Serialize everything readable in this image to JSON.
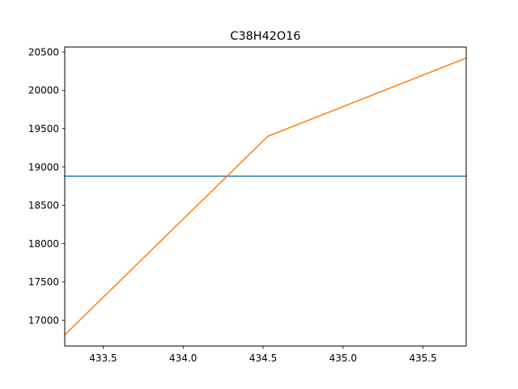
{
  "chart_data": {
    "type": "line",
    "title": "C38H42O16",
    "xlabel": "",
    "ylabel": "",
    "xlim": [
      433.26,
      435.77
    ],
    "ylim": [
      16664,
      20564
    ],
    "xticks": [
      433.5,
      434.0,
      434.5,
      435.0,
      435.5
    ],
    "xtick_labels": [
      "433.5",
      "434.0",
      "434.5",
      "435.0",
      "435.5"
    ],
    "yticks": [
      17000,
      17500,
      18000,
      18500,
      19000,
      19500,
      20000,
      20500
    ],
    "ytick_labels": [
      "17000",
      "17500",
      "18000",
      "18500",
      "19000",
      "19500",
      "20000",
      "20500"
    ],
    "grid": false,
    "series": [
      {
        "color": "#1f77b4",
        "x": [
          433.26,
          435.77
        ],
        "y": [
          18880,
          18880
        ]
      },
      {
        "color": "#ff7f0e",
        "x": [
          433.26,
          434.53,
          435.77
        ],
        "y": [
          16810,
          19400,
          20420
        ]
      }
    ]
  }
}
